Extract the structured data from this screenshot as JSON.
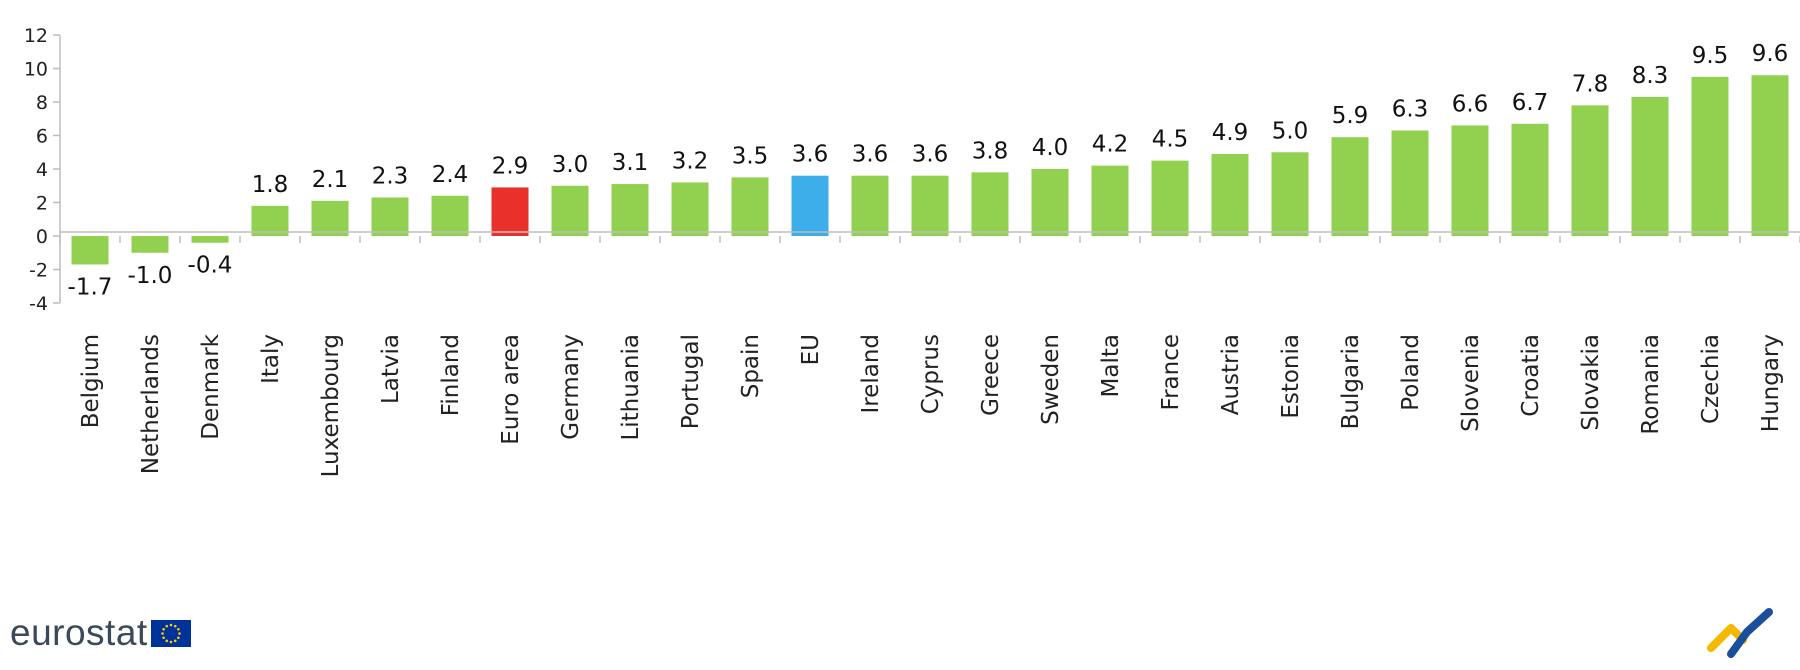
{
  "chart_data": {
    "type": "bar",
    "title": "",
    "xlabel": "",
    "ylabel": "",
    "ylim": [
      -4,
      12
    ],
    "yticks": [
      -4,
      -2,
      0,
      2,
      4,
      6,
      8,
      10,
      12
    ],
    "grid": false,
    "legend": "none",
    "categories": [
      "Belgium",
      "Netherlands",
      "Denmark",
      "Italy",
      "Luxembourg",
      "Latvia",
      "Finland",
      "Euro area",
      "Germany",
      "Lithuania",
      "Portugal",
      "Spain",
      "EU",
      "Ireland",
      "Cyprus",
      "Greece",
      "Sweden",
      "Malta",
      "France",
      "Austria",
      "Estonia",
      "Bulgaria",
      "Poland",
      "Slovenia",
      "Croatia",
      "Slovakia",
      "Romania",
      "Czechia",
      "Hungary"
    ],
    "values": [
      -1.7,
      -1.0,
      -0.4,
      1.8,
      2.1,
      2.3,
      2.4,
      2.9,
      3.0,
      3.1,
      3.2,
      3.5,
      3.6,
      3.6,
      3.6,
      3.8,
      4.0,
      4.2,
      4.5,
      4.9,
      5.0,
      5.9,
      6.3,
      6.6,
      6.7,
      7.8,
      8.3,
      9.5,
      9.6
    ],
    "value_labels": [
      "-1.7",
      "-1.0",
      "-0.4",
      "1.8",
      "2.1",
      "2.3",
      "2.4",
      "2.9",
      "3.0",
      "3.1",
      "3.2",
      "3.5",
      "3.6",
      "3.6",
      "3.6",
      "3.8",
      "4.0",
      "4.2",
      "4.5",
      "4.9",
      "5.0",
      "5.9",
      "6.3",
      "6.6",
      "6.7",
      "7.8",
      "8.3",
      "9.5",
      "9.6"
    ],
    "colors": {
      "default": "#92d050",
      "highlights": {
        "Euro area": "#e8312a",
        "EU": "#3daee9"
      }
    }
  },
  "branding": {
    "logo_text": "eurostat",
    "flag_blue": "#003399",
    "star_yellow": "#ffcc00",
    "mark_colors": [
      "#f5b800",
      "#1b4f9c"
    ]
  }
}
